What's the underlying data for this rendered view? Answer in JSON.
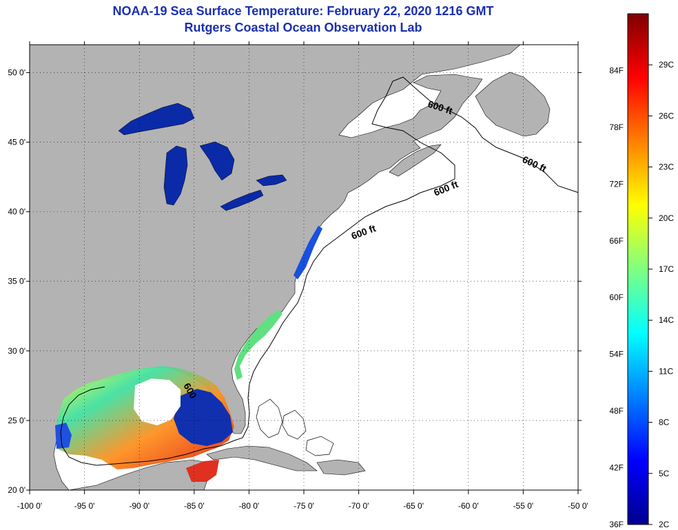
{
  "title": {
    "line1": "NOAA-19 Sea Surface Temperature:  February 22, 2020 1216 GMT",
    "line2": "Rutgers Coastal Ocean Observation Lab"
  },
  "map": {
    "lon_range": [
      -100,
      -50
    ],
    "lat_range": [
      20,
      52
    ],
    "lon_ticks": [
      "-100 0'",
      "-95 0'",
      "-90 0'",
      "-85 0'",
      "-80 0'",
      "-75 0'",
      "-70 0'",
      "-65 0'",
      "-60 0'",
      "-55 0'",
      "-50 0'"
    ],
    "lat_ticks": [
      "20 0'",
      "25 0'",
      "30 0'",
      "35 0'",
      "40 0'",
      "45 0'",
      "50 0'"
    ],
    "gridlines": true,
    "colors": {
      "land": "#b3b3b3",
      "ocean_no_data": "#ffffff",
      "lake_sst": "#0a2aa8"
    },
    "contour_labels": [
      "600 ft",
      "600 ft",
      "600 ft",
      "600 ft",
      "600"
    ]
  },
  "colorbar": {
    "fahrenheit_labels": [
      "84F",
      "78F",
      "72F",
      "66F",
      "60F",
      "54F",
      "48F",
      "42F",
      "36F"
    ],
    "celsius_labels": [
      "29C",
      "26C",
      "23C",
      "20C",
      "17C",
      "14C",
      "11C",
      "8C",
      "5C",
      "2C"
    ],
    "gradient": [
      "#800000",
      "#ff0000",
      "#ff8000",
      "#ffff00",
      "#80ff80",
      "#00ffff",
      "#0080ff",
      "#0000ff",
      "#00008f"
    ]
  }
}
